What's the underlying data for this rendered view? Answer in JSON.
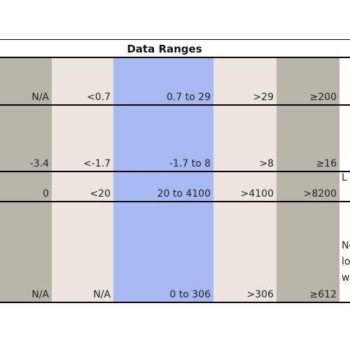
{
  "table": {
    "title": "Data Ranges",
    "rows": [
      {
        "cells": [
          "N/A",
          "<0.7",
          "0.7 to 29",
          ">29",
          "≥200"
        ]
      },
      {
        "cells": [
          "-3.4",
          "<-1.7",
          "-1.7 to 8",
          ">8",
          "≥16"
        ]
      },
      {
        "cells": [
          "0",
          "<20",
          "20 to 4100",
          ">4100",
          ">8200"
        ],
        "note": [
          "L"
        ]
      },
      {
        "cells": [
          "N/A",
          "N/A",
          "0 to 306",
          ">306",
          "≥612"
        ],
        "note": [
          "Nc",
          "lo",
          "w"
        ]
      }
    ]
  }
}
